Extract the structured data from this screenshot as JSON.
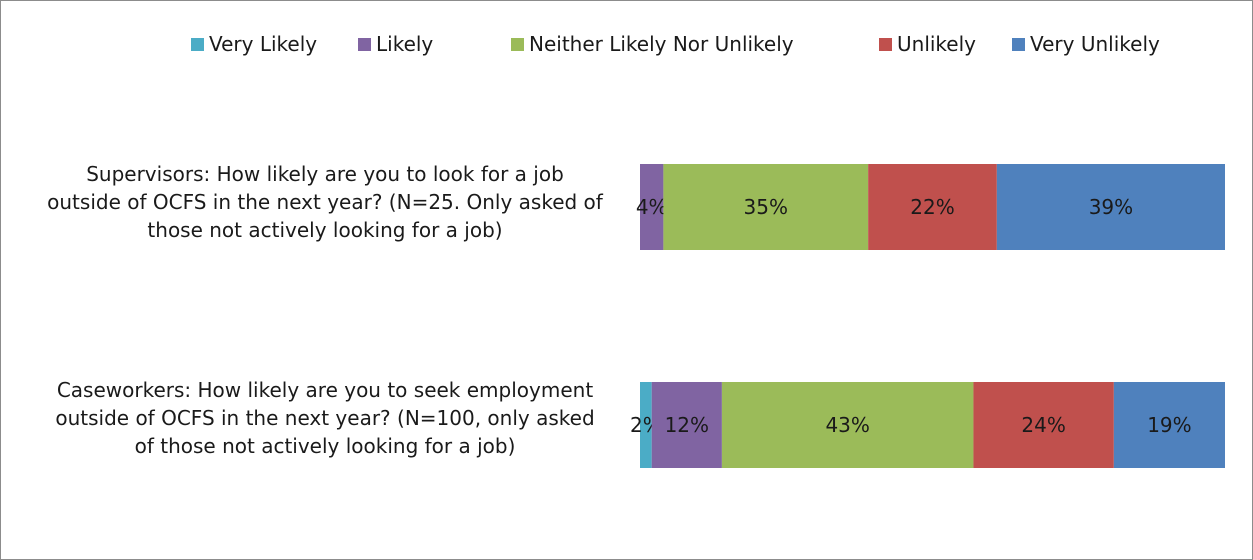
{
  "chart_data": {
    "type": "bar",
    "orientation": "horizontal",
    "stacked": "percent",
    "legend_position": "top",
    "categories": [
      "Supervisors: How likely are you to look for a job outside of OCFS in the next year? (N=25. Only asked of those not actively looking for a job)",
      "Caseworkers: How likely are you to seek employment outside of OCFS in the next year? (N=100, only asked of those not actively looking for a job)"
    ],
    "category_lines": [
      [
        "Supervisors: How likely are you to look for a job",
        "outside of OCFS in the next year? (N=25. Only asked of",
        "those not actively looking for a job)"
      ],
      [
        "Caseworkers: How likely are you to seek employment",
        "outside of OCFS in the next year? (N=100, only asked",
        "of those not actively looking for a job)"
      ]
    ],
    "series": [
      {
        "name": "Very Likely",
        "color": "#4BACC6",
        "values": [
          0,
          2
        ],
        "labels": [
          "",
          "2%"
        ]
      },
      {
        "name": "Likely",
        "color": "#8064A2",
        "values": [
          4,
          12
        ],
        "labels": [
          "4%",
          "12%"
        ]
      },
      {
        "name": "Neither Likely Nor Unlikely",
        "color": "#9BBB59",
        "values": [
          35,
          43
        ],
        "labels": [
          "35%",
          "43%"
        ]
      },
      {
        "name": "Unlikely",
        "color": "#C0504D",
        "values": [
          22,
          24
        ],
        "labels": [
          "22%",
          "24%"
        ]
      },
      {
        "name": "Very Unlikely",
        "color": "#4F81BD",
        "values": [
          39,
          19
        ],
        "labels": [
          "39%",
          "19%"
        ]
      }
    ]
  }
}
